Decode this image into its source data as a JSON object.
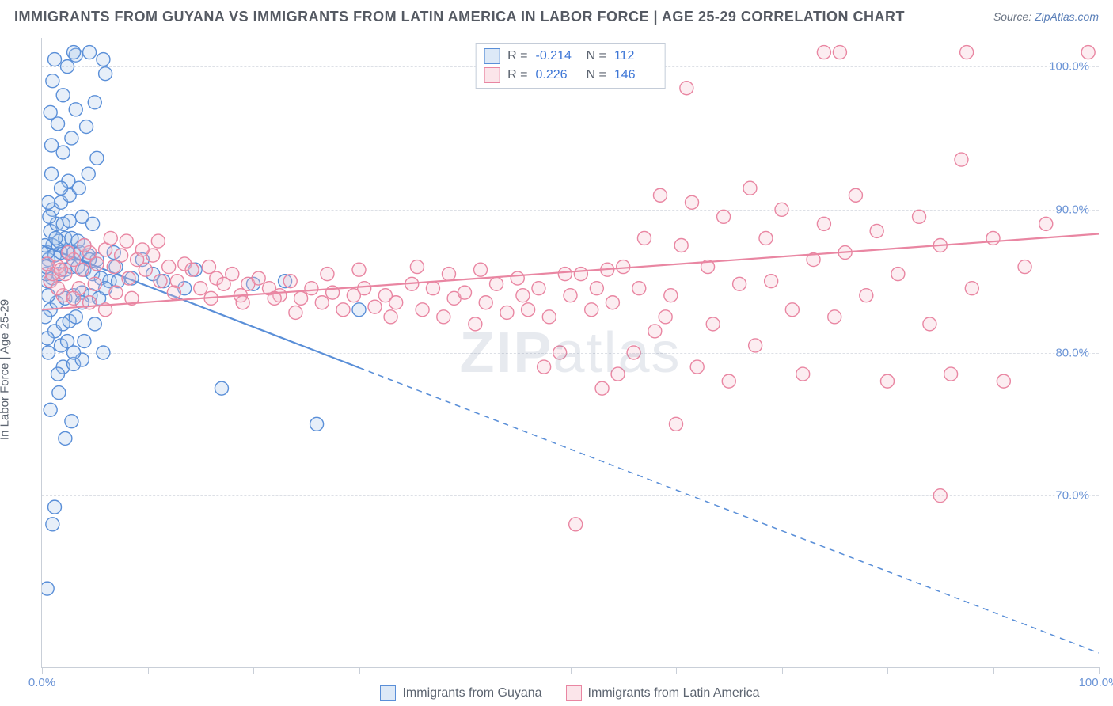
{
  "title": "IMMIGRANTS FROM GUYANA VS IMMIGRANTS FROM LATIN AMERICA IN LABOR FORCE | AGE 25-29 CORRELATION CHART",
  "source_prefix": "Source: ",
  "source_link": "ZipAtlas.com",
  "watermark": "ZIPatlas",
  "y_axis_label": "In Labor Force | Age 25-29",
  "chart": {
    "type": "scatter",
    "background_color": "#ffffff",
    "grid_color": "#dde0e6",
    "axis_color": "#c9cfd8",
    "tick_label_color": "#6b94d6",
    "axis_label_color": "#5c6470",
    "xlim": [
      0,
      100
    ],
    "ylim": [
      58,
      102
    ],
    "x_ticks": [
      0,
      10,
      20,
      30,
      40,
      50,
      60,
      70,
      80,
      90,
      100
    ],
    "x_tick_labels": {
      "0": "0.0%",
      "100": "100.0%"
    },
    "y_ticks": [
      70,
      80,
      90,
      100
    ],
    "y_tick_labels": [
      "70.0%",
      "80.0%",
      "90.0%",
      "100.0%"
    ],
    "marker_radius": 8.5,
    "marker_fill_opacity": 0.28,
    "marker_stroke_width": 1.4,
    "line_width": 2.2
  },
  "series": [
    {
      "key": "guyana",
      "label": "Immigrants from Guyana",
      "color_stroke": "#5a8fd8",
      "color_fill": "#a9c7eb",
      "R": "-0.214",
      "N": "112",
      "trend": {
        "x1": 0,
        "y1": 87.5,
        "x2": 100,
        "y2": 59.0,
        "solid_until_x": 30
      },
      "points": [
        [
          0.5,
          63.5
        ],
        [
          1.0,
          68.0
        ],
        [
          1.2,
          69.2
        ],
        [
          2.2,
          74.0
        ],
        [
          2.8,
          75.2
        ],
        [
          0.8,
          76.0
        ],
        [
          1.6,
          77.2
        ],
        [
          2.0,
          79.0
        ],
        [
          3.0,
          79.2
        ],
        [
          3.8,
          79.5
        ],
        [
          0.6,
          80.0
        ],
        [
          1.8,
          80.5
        ],
        [
          2.4,
          80.8
        ],
        [
          4.0,
          80.8
        ],
        [
          5.8,
          80.0
        ],
        [
          1.2,
          81.5
        ],
        [
          2.0,
          82.0
        ],
        [
          2.6,
          82.2
        ],
        [
          3.2,
          82.5
        ],
        [
          0.8,
          83.0
        ],
        [
          1.4,
          83.5
        ],
        [
          2.2,
          83.8
        ],
        [
          3.0,
          84.0
        ],
        [
          3.8,
          84.2
        ],
        [
          4.6,
          84.0
        ],
        [
          5.4,
          83.8
        ],
        [
          0.5,
          85.0
        ],
        [
          1.0,
          85.2
        ],
        [
          1.6,
          85.5
        ],
        [
          2.2,
          85.8
        ],
        [
          2.8,
          86.0
        ],
        [
          3.4,
          86.0
        ],
        [
          4.0,
          85.8
        ],
        [
          4.8,
          85.5
        ],
        [
          5.6,
          85.2
        ],
        [
          6.4,
          85.0
        ],
        [
          7.2,
          85.0
        ],
        [
          8.5,
          85.2
        ],
        [
          0.6,
          86.5
        ],
        [
          1.2,
          86.8
        ],
        [
          1.8,
          87.0
        ],
        [
          2.4,
          87.0
        ],
        [
          3.0,
          87.0
        ],
        [
          3.6,
          87.0
        ],
        [
          4.4,
          86.8
        ],
        [
          5.2,
          86.5
        ],
        [
          1.0,
          87.5
        ],
        [
          1.6,
          87.8
        ],
        [
          2.2,
          88.0
        ],
        [
          2.8,
          88.0
        ],
        [
          3.4,
          87.8
        ],
        [
          0.8,
          88.5
        ],
        [
          1.4,
          89.0
        ],
        [
          2.0,
          89.0
        ],
        [
          2.6,
          89.2
        ],
        [
          3.8,
          89.5
        ],
        [
          4.8,
          89.0
        ],
        [
          1.0,
          90.0
        ],
        [
          1.8,
          90.5
        ],
        [
          2.6,
          91.0
        ],
        [
          3.5,
          91.5
        ],
        [
          4.4,
          92.5
        ],
        [
          5.2,
          93.6
        ],
        [
          2.0,
          94.0
        ],
        [
          2.8,
          95.0
        ],
        [
          1.5,
          96.0
        ],
        [
          0.8,
          96.8
        ],
        [
          3.2,
          97.0
        ],
        [
          2.0,
          98.0
        ],
        [
          1.0,
          99.0
        ],
        [
          2.4,
          100.0
        ],
        [
          3.2,
          100.8
        ],
        [
          4.5,
          101.0
        ],
        [
          5.8,
          100.5
        ],
        [
          0.5,
          87.0
        ],
        [
          0.4,
          85.5
        ],
        [
          0.6,
          84.0
        ],
        [
          0.3,
          82.5
        ],
        [
          0.5,
          81.0
        ],
        [
          3.0,
          80.0
        ],
        [
          1.5,
          78.5
        ],
        [
          4.5,
          86.5
        ],
        [
          6.0,
          84.5
        ],
        [
          7.0,
          86.0
        ],
        [
          9.5,
          86.5
        ],
        [
          10.5,
          85.5
        ],
        [
          11.5,
          85.0
        ],
        [
          13.5,
          84.5
        ],
        [
          14.5,
          85.8
        ],
        [
          17.0,
          77.5
        ],
        [
          20.0,
          84.8
        ],
        [
          23.0,
          85.0
        ],
        [
          26.0,
          75.0
        ],
        [
          30.0,
          83.0
        ],
        [
          4.2,
          95.8
        ],
        [
          5.0,
          97.5
        ],
        [
          6.0,
          99.5
        ],
        [
          2.5,
          92.0
        ],
        [
          1.8,
          91.5
        ],
        [
          0.9,
          92.5
        ],
        [
          0.7,
          89.5
        ],
        [
          1.3,
          88.0
        ],
        [
          3.8,
          83.5
        ],
        [
          5.0,
          82.0
        ],
        [
          4.0,
          87.5
        ],
        [
          6.8,
          87.0
        ],
        [
          0.4,
          86.0
        ],
        [
          0.3,
          87.5
        ],
        [
          0.6,
          90.5
        ],
        [
          0.9,
          94.5
        ],
        [
          1.2,
          100.5
        ],
        [
          3.0,
          101.0
        ]
      ]
    },
    {
      "key": "latin",
      "label": "Immigrants from Latin America",
      "color_stroke": "#e986a2",
      "color_fill": "#f5bdcb",
      "R": "0.226",
      "N": "146",
      "trend": {
        "x1": 0,
        "y1": 83.0,
        "x2": 100,
        "y2": 88.3,
        "solid_until_x": 100
      },
      "points": [
        [
          0.8,
          85.0
        ],
        [
          1.5,
          86.0
        ],
        [
          2.2,
          85.5
        ],
        [
          3.0,
          86.5
        ],
        [
          3.8,
          85.8
        ],
        [
          4.5,
          87.0
        ],
        [
          5.2,
          86.2
        ],
        [
          6.0,
          87.2
        ],
        [
          6.8,
          86.0
        ],
        [
          7.5,
          86.8
        ],
        [
          8.2,
          85.2
        ],
        [
          9.0,
          86.5
        ],
        [
          9.8,
          85.8
        ],
        [
          10.5,
          86.8
        ],
        [
          11.2,
          85.0
        ],
        [
          12.0,
          86.0
        ],
        [
          12.8,
          85.0
        ],
        [
          13.5,
          86.2
        ],
        [
          14.2,
          85.8
        ],
        [
          15.0,
          84.5
        ],
        [
          15.8,
          86.0
        ],
        [
          16.5,
          85.2
        ],
        [
          17.2,
          84.8
        ],
        [
          18.0,
          85.5
        ],
        [
          18.8,
          84.0
        ],
        [
          19.5,
          84.8
        ],
        [
          20.5,
          85.2
        ],
        [
          21.5,
          84.5
        ],
        [
          22.5,
          84.0
        ],
        [
          23.5,
          85.0
        ],
        [
          24.5,
          83.8
        ],
        [
          25.5,
          84.5
        ],
        [
          26.5,
          83.5
        ],
        [
          27.5,
          84.2
        ],
        [
          28.5,
          83.0
        ],
        [
          29.5,
          84.0
        ],
        [
          30.5,
          84.5
        ],
        [
          31.5,
          83.2
        ],
        [
          32.5,
          84.0
        ],
        [
          33.5,
          83.5
        ],
        [
          35.0,
          84.8
        ],
        [
          36.0,
          83.0
        ],
        [
          37.0,
          84.5
        ],
        [
          38.0,
          82.5
        ],
        [
          39.0,
          83.8
        ],
        [
          40.0,
          84.2
        ],
        [
          41.0,
          82.0
        ],
        [
          42.0,
          83.5
        ],
        [
          43.0,
          84.8
        ],
        [
          44.0,
          82.8
        ],
        [
          45.0,
          85.2
        ],
        [
          46.0,
          83.0
        ],
        [
          47.0,
          84.5
        ],
        [
          48.0,
          82.5
        ],
        [
          49.0,
          80.0
        ],
        [
          50.0,
          84.0
        ],
        [
          47.5,
          79.0
        ],
        [
          50.5,
          68.0
        ],
        [
          51.0,
          85.5
        ],
        [
          52.0,
          83.0
        ],
        [
          53.0,
          77.5
        ],
        [
          53.5,
          85.8
        ],
        [
          54.5,
          78.5
        ],
        [
          55.0,
          86.0
        ],
        [
          56.0,
          80.0
        ],
        [
          57.0,
          88.0
        ],
        [
          58.0,
          81.5
        ],
        [
          58.5,
          91.0
        ],
        [
          59.5,
          84.0
        ],
        [
          60.0,
          75.0
        ],
        [
          60.5,
          87.5
        ],
        [
          61.5,
          90.5
        ],
        [
          62.0,
          79.0
        ],
        [
          63.0,
          86.0
        ],
        [
          63.5,
          82.0
        ],
        [
          64.5,
          89.5
        ],
        [
          65.0,
          78.0
        ],
        [
          66.0,
          84.8
        ],
        [
          67.0,
          91.5
        ],
        [
          67.5,
          80.5
        ],
        [
          68.5,
          88.0
        ],
        [
          69.0,
          85.0
        ],
        [
          70.0,
          90.0
        ],
        [
          71.0,
          83.0
        ],
        [
          72.0,
          78.5
        ],
        [
          73.0,
          86.5
        ],
        [
          74.0,
          89.0
        ],
        [
          75.0,
          82.5
        ],
        [
          76.0,
          87.0
        ],
        [
          77.0,
          91.0
        ],
        [
          78.0,
          84.0
        ],
        [
          79.0,
          88.5
        ],
        [
          80.0,
          78.0
        ],
        [
          81.0,
          85.5
        ],
        [
          83.0,
          89.5
        ],
        [
          84.0,
          82.0
        ],
        [
          85.0,
          87.5
        ],
        [
          86.0,
          78.5
        ],
        [
          87.0,
          93.5
        ],
        [
          88.0,
          84.5
        ],
        [
          90.0,
          88.0
        ],
        [
          91.0,
          78.0
        ],
        [
          93.0,
          86.0
        ],
        [
          95.0,
          89.0
        ],
        [
          85.0,
          70.0
        ],
        [
          61.0,
          98.5
        ],
        [
          74.0,
          101.0
        ],
        [
          75.5,
          101.0
        ],
        [
          87.5,
          101.0
        ],
        [
          99.0,
          101.0
        ],
        [
          2.0,
          84.0
        ],
        [
          3.5,
          84.5
        ],
        [
          5.0,
          84.8
        ],
        [
          7.0,
          84.2
        ],
        [
          2.5,
          87.0
        ],
        [
          4.0,
          87.5
        ],
        [
          1.0,
          85.5
        ],
        [
          1.8,
          85.8
        ],
        [
          0.5,
          86.2
        ],
        [
          6.5,
          88.0
        ],
        [
          8.0,
          87.8
        ],
        [
          9.5,
          87.2
        ],
        [
          11.0,
          87.8
        ],
        [
          4.5,
          83.5
        ],
        [
          6.0,
          83.0
        ],
        [
          8.5,
          83.8
        ],
        [
          12.5,
          84.2
        ],
        [
          16.0,
          83.8
        ],
        [
          19.0,
          83.5
        ],
        [
          22.0,
          83.8
        ],
        [
          24.0,
          82.8
        ],
        [
          27.0,
          85.5
        ],
        [
          30.0,
          85.8
        ],
        [
          33.0,
          82.5
        ],
        [
          35.5,
          86.0
        ],
        [
          38.5,
          85.5
        ],
        [
          41.5,
          85.8
        ],
        [
          45.5,
          84.0
        ],
        [
          49.5,
          85.5
        ],
        [
          52.5,
          84.5
        ],
        [
          54.0,
          83.5
        ],
        [
          56.5,
          84.5
        ],
        [
          59.0,
          82.5
        ],
        [
          1.5,
          84.5
        ],
        [
          3.0,
          83.8
        ]
      ]
    }
  ],
  "legend_labels": {
    "R": "R =",
    "N": "N ="
  },
  "bottom_legend": [
    {
      "series": "guyana"
    },
    {
      "series": "latin"
    }
  ]
}
